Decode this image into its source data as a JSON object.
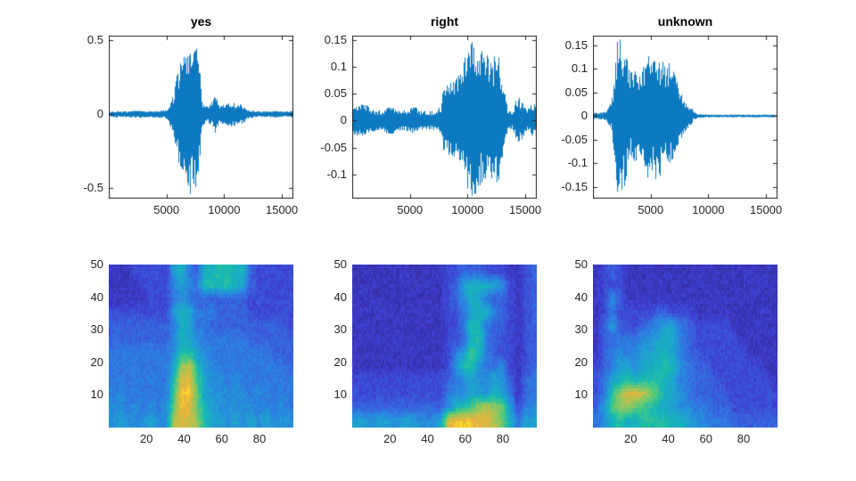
{
  "figure": {
    "background": "#ffffff",
    "axis_box_color": "#262626",
    "tick_label_color": "#262626",
    "title_color": "#000000",
    "waveform_line_color": "#0072BD"
  },
  "colormap": {
    "name": "parula-like",
    "stops": [
      "#352a9b",
      "#3e3fd0",
      "#3863dd",
      "#2a84e0",
      "#1fa2d0",
      "#15b7b5",
      "#3fc68c",
      "#7fc866",
      "#bdc04b",
      "#edb43c",
      "#f9ef22"
    ]
  },
  "chart_data": [
    {
      "id": "wave-yes",
      "type": "line",
      "subtype": "audio-waveform",
      "title": "yes",
      "row": 0,
      "col": 0,
      "line_color": "#0072BD",
      "seed": 7,
      "xlim": [
        0,
        16000
      ],
      "ylim": [
        -0.57,
        0.53
      ],
      "xticks": [
        5000,
        10000,
        15000
      ],
      "yticks": [
        -0.5,
        0,
        0.5
      ],
      "neg_scale": 1.06,
      "envelope": [
        [
          0,
          0.018
        ],
        [
          800,
          0.022
        ],
        [
          1600,
          0.018
        ],
        [
          2400,
          0.025
        ],
        [
          3200,
          0.02
        ],
        [
          4000,
          0.022
        ],
        [
          4800,
          0.028
        ],
        [
          5200,
          0.05
        ],
        [
          5600,
          0.13
        ],
        [
          6000,
          0.3
        ],
        [
          6400,
          0.42
        ],
        [
          6800,
          0.5
        ],
        [
          7200,
          0.53
        ],
        [
          7600,
          0.5
        ],
        [
          7900,
          0.3
        ],
        [
          8100,
          0.07
        ],
        [
          8600,
          0.05
        ],
        [
          9000,
          0.09
        ],
        [
          9300,
          0.13
        ],
        [
          9700,
          0.06
        ],
        [
          10200,
          0.07
        ],
        [
          10700,
          0.08
        ],
        [
          11200,
          0.07
        ],
        [
          11700,
          0.06
        ],
        [
          12100,
          0.03
        ],
        [
          12800,
          0.022
        ],
        [
          13600,
          0.02
        ],
        [
          14400,
          0.022
        ],
        [
          15200,
          0.018
        ],
        [
          16000,
          0.02
        ]
      ]
    },
    {
      "id": "wave-right",
      "type": "line",
      "subtype": "audio-waveform",
      "title": "right",
      "row": 0,
      "col": 1,
      "line_color": "#0072BD",
      "seed": 21,
      "xlim": [
        0,
        16000
      ],
      "ylim": [
        -0.145,
        0.158
      ],
      "xticks": [
        5000,
        10000,
        15000
      ],
      "yticks": [
        -0.1,
        -0.05,
        0,
        0.05,
        0.1,
        0.15
      ],
      "neg_scale": 0.92,
      "envelope": [
        [
          0,
          0.028
        ],
        [
          600,
          0.032
        ],
        [
          1200,
          0.03
        ],
        [
          1900,
          0.022
        ],
        [
          2600,
          0.02
        ],
        [
          3300,
          0.03
        ],
        [
          3900,
          0.022
        ],
        [
          4600,
          0.02
        ],
        [
          5300,
          0.028
        ],
        [
          6000,
          0.02
        ],
        [
          6700,
          0.018
        ],
        [
          7300,
          0.02
        ],
        [
          7700,
          0.03
        ],
        [
          7900,
          0.06
        ],
        [
          8300,
          0.07
        ],
        [
          8800,
          0.08
        ],
        [
          9300,
          0.09
        ],
        [
          9800,
          0.12
        ],
        [
          10200,
          0.155
        ],
        [
          10600,
          0.15
        ],
        [
          11000,
          0.13
        ],
        [
          11500,
          0.13
        ],
        [
          12000,
          0.12
        ],
        [
          12500,
          0.13
        ],
        [
          12900,
          0.11
        ],
        [
          13200,
          0.06
        ],
        [
          13500,
          0.02
        ],
        [
          13900,
          0.015
        ],
        [
          14300,
          0.045
        ],
        [
          14700,
          0.04
        ],
        [
          15100,
          0.02
        ],
        [
          15500,
          0.03
        ],
        [
          16000,
          0.032
        ]
      ]
    },
    {
      "id": "wave-unknown",
      "type": "line",
      "subtype": "audio-waveform",
      "title": "unknown",
      "row": 0,
      "col": 2,
      "line_color": "#0072BD",
      "seed": 33,
      "xlim": [
        0,
        16000
      ],
      "ylim": [
        -0.175,
        0.17
      ],
      "xticks": [
        5000,
        10000,
        15000
      ],
      "yticks": [
        -0.15,
        -0.1,
        -0.05,
        0,
        0.05,
        0.1,
        0.15
      ],
      "neg_scale": 1.0,
      "envelope": [
        [
          0,
          0.006
        ],
        [
          600,
          0.007
        ],
        [
          1200,
          0.01
        ],
        [
          1600,
          0.03
        ],
        [
          1900,
          0.09
        ],
        [
          2100,
          0.16
        ],
        [
          2400,
          0.165
        ],
        [
          2700,
          0.15
        ],
        [
          3000,
          0.12
        ],
        [
          3300,
          0.09
        ],
        [
          3600,
          0.11
        ],
        [
          3900,
          0.09
        ],
        [
          4200,
          0.1
        ],
        [
          4500,
          0.12
        ],
        [
          4800,
          0.13
        ],
        [
          5100,
          0.11
        ],
        [
          5400,
          0.14
        ],
        [
          5700,
          0.12
        ],
        [
          6000,
          0.13
        ],
        [
          6300,
          0.11
        ],
        [
          6600,
          0.12
        ],
        [
          6900,
          0.1
        ],
        [
          7200,
          0.08
        ],
        [
          7500,
          0.06
        ],
        [
          7800,
          0.04
        ],
        [
          8100,
          0.03
        ],
        [
          8500,
          0.02
        ],
        [
          8800,
          0.008
        ],
        [
          9200,
          0.004
        ],
        [
          10000,
          0.003
        ],
        [
          12000,
          0.003
        ],
        [
          14000,
          0.003
        ],
        [
          16000,
          0.003
        ]
      ]
    },
    {
      "id": "spec-yes",
      "type": "heatmap",
      "subtype": "spectrogram",
      "row": 1,
      "col": 0,
      "seed": 11,
      "xlim": [
        0,
        98
      ],
      "ylim": [
        0,
        50
      ],
      "xticks": [
        20,
        40,
        60,
        80
      ],
      "yticks": [
        10,
        20,
        30,
        40,
        50
      ],
      "grid_cols": 24,
      "grid_rows": 12,
      "rows_hex": [
        "111222226743778877322222",
        "111122225654888876322222",
        "111112224543333333222222",
        "222222226764443333222222",
        "333333334764433333333332",
        "333333335765444444333333",
        "444444445886544444444333",
        "444444446bc8554444444443",
        "444444448dd9655454444444",
        "454444449eea655555454444",
        "55454545aeda765555545454",
        "56555655cdcb866565656555"
      ]
    },
    {
      "id": "spec-right",
      "type": "heatmap",
      "subtype": "spectrogram",
      "row": 1,
      "col": 1,
      "seed": 47,
      "xlim": [
        0,
        98
      ],
      "ylim": [
        0,
        50
      ],
      "xticks": [
        20,
        40,
        60,
        80
      ],
      "yticks": [
        10,
        20,
        30,
        40,
        50
      ],
      "grid_cols": 24,
      "grid_rows": 12,
      "rows_hex": [
        "111111111111223332221123",
        "111111111111236777652123",
        "111111111111235764332123",
        "111111111111224677432123",
        "111111111111224874332123",
        "111111111111223784322123",
        "111111111111246974322123",
        "111111111111258854452123",
        "222222222222345655653134",
        "222222222222455665764134",
        "3333333333335789bcba6245",
        "665665665556deeeddca7466"
      ]
    },
    {
      "id": "spec-unknown",
      "type": "heatmap",
      "subtype": "spectrogram",
      "row": 1,
      "col": 2,
      "seed": 59,
      "xlim": [
        0,
        98
      ],
      "ylim": [
        0,
        50
      ],
      "xticks": [
        20,
        40,
        60,
        80
      ],
      "yticks": [
        10,
        20,
        30,
        40,
        50
      ],
      "grid_cols": 24,
      "grid_rows": 12,
      "rows_hex": [
        "123211111111111111111111",
        "122211111111111111111111",
        "125311111111111111111111",
        "124222223322211111111111",
        "136322345664322222111111",
        "133444556764322222211111",
        "134545667764332222221111",
        "234665677875433222222211",
        "246787888764433322222221",
        "248bddcb9765433332222222",
        "369bba987665544333222222",
        "457877888877655444333333"
      ]
    }
  ]
}
